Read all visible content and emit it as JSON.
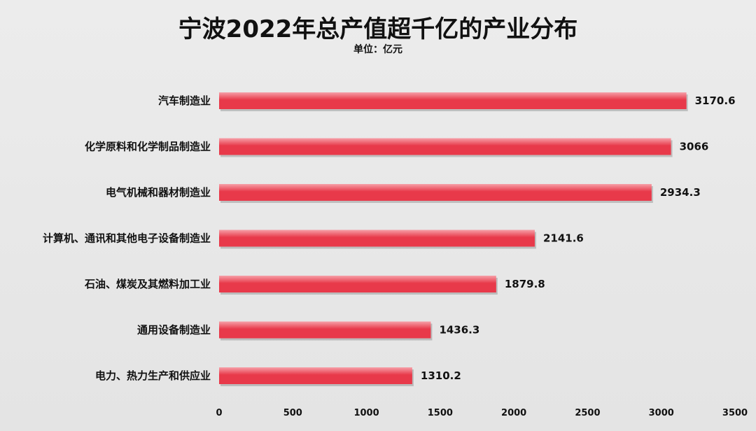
{
  "chart_data": {
    "type": "bar",
    "orientation": "horizontal",
    "title": "宁波2022年总产值超千亿的产业分布",
    "subtitle": "单位：亿元",
    "categories": [
      "汽车制造业",
      "化学原料和化学制品制造业",
      "电气机械和器材制造业",
      "计算机、通讯和其他电子设备制造业",
      "石油、煤炭及其燃料加工业",
      "通用设备制造业",
      "电力、热力生产和供应业"
    ],
    "values": [
      3170.6,
      3066,
      2934.3,
      2141.6,
      1879.8,
      1436.3,
      1310.2
    ],
    "value_labels": [
      "3170.6",
      "3066",
      "2934.3",
      "2141.6",
      "1879.8",
      "1436.3",
      "1310.2"
    ],
    "xlim": [
      0,
      3500
    ],
    "xticks": [
      "0",
      "500",
      "1000",
      "1500",
      "2000",
      "2500",
      "3000",
      "3500"
    ],
    "grid": false,
    "legend": "none",
    "bar_color": "#e8394a",
    "bar_highlight": "#f6a0a8"
  }
}
